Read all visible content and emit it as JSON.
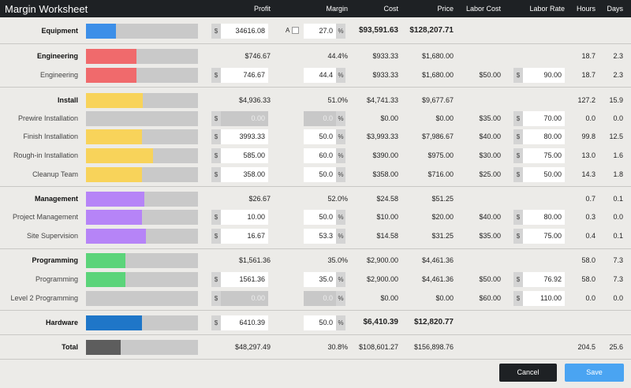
{
  "app_title": "Margin Worksheet",
  "columns": {
    "profit": "Profit",
    "margin": "Margin",
    "cost": "Cost",
    "price": "Price",
    "labor_cost": "Labor Cost",
    "labor_rate": "Labor Rate",
    "hours": "Hours",
    "days": "Days"
  },
  "colors": {
    "equipment": "#3d8fe8",
    "engineering": "#f06a6c",
    "install": "#f8d35a",
    "management": "#b684f7",
    "programming": "#5bd47a",
    "hardware": "#1f76c8",
    "total": "#5d5d5d"
  },
  "symbols": {
    "dollar": "$",
    "percent": "%"
  },
  "rows": [
    {
      "name": "Equipment",
      "group": true,
      "color": "equipment",
      "fill": 0.27,
      "profit_input": "34616.08",
      "auto_label": "A",
      "margin_input": "27.0",
      "cost": "$93,591.63",
      "price": "$128,207.71",
      "bold_values": true
    },
    {
      "name": "Engineering",
      "group": true,
      "color": "engineering",
      "fill": 0.45,
      "profit": "$746.67",
      "margin": "44.4%",
      "cost": "$933.33",
      "price": "$1,680.00",
      "hours": "18.7",
      "days": "2.3"
    },
    {
      "name": "Engineering",
      "color": "engineering",
      "fill": 0.45,
      "profit_input": "746.67",
      "margin_input": "44.4",
      "cost": "$933.33",
      "price": "$1,680.00",
      "labor_cost": "$50.00",
      "labor_rate": "90.00",
      "hours": "18.7",
      "days": "2.3"
    },
    {
      "name": "Install",
      "group": true,
      "color": "install",
      "fill": 0.51,
      "profit": "$4,936.33",
      "margin": "51.0%",
      "cost": "$4,741.33",
      "price": "$9,677.67",
      "hours": "127.2",
      "days": "15.9"
    },
    {
      "name": "Prewire Installation",
      "color": "install",
      "fill": 0,
      "profit_input": "0.00",
      "margin_input": "0.0",
      "disabled": true,
      "cost": "$0.00",
      "price": "$0.00",
      "labor_cost": "$35.00",
      "labor_rate": "70.00",
      "hours": "0.0",
      "days": "0.0"
    },
    {
      "name": "Finish Installation",
      "color": "install",
      "fill": 0.5,
      "profit_input": "3993.33",
      "margin_input": "50.0",
      "cost": "$3,993.33",
      "price": "$7,986.67",
      "labor_cost": "$40.00",
      "labor_rate": "80.00",
      "hours": "99.8",
      "days": "12.5"
    },
    {
      "name": "Rough-in Installation",
      "color": "install",
      "fill": 0.6,
      "profit_input": "585.00",
      "margin_input": "60.0",
      "cost": "$390.00",
      "price": "$975.00",
      "labor_cost": "$30.00",
      "labor_rate": "75.00",
      "hours": "13.0",
      "days": "1.6"
    },
    {
      "name": "Cleanup Team",
      "color": "install",
      "fill": 0.5,
      "profit_input": "358.00",
      "margin_input": "50.0",
      "cost": "$358.00",
      "price": "$716.00",
      "labor_cost": "$25.00",
      "labor_rate": "50.00",
      "hours": "14.3",
      "days": "1.8"
    },
    {
      "name": "Management",
      "group": true,
      "color": "management",
      "fill": 0.52,
      "profit": "$26.67",
      "margin": "52.0%",
      "cost": "$24.58",
      "price": "$51.25",
      "hours": "0.7",
      "days": "0.1"
    },
    {
      "name": "Project Management",
      "color": "management",
      "fill": 0.5,
      "profit_input": "10.00",
      "margin_input": "50.0",
      "cost": "$10.00",
      "price": "$20.00",
      "labor_cost": "$40.00",
      "labor_rate": "80.00",
      "hours": "0.3",
      "days": "0.0"
    },
    {
      "name": "Site Supervision",
      "color": "management",
      "fill": 0.533,
      "profit_input": "16.67",
      "margin_input": "53.3",
      "cost": "$14.58",
      "price": "$31.25",
      "labor_cost": "$35.00",
      "labor_rate": "75.00",
      "hours": "0.4",
      "days": "0.1"
    },
    {
      "name": "Programming",
      "group": true,
      "color": "programming",
      "fill": 0.35,
      "profit": "$1,561.36",
      "margin": "35.0%",
      "cost": "$2,900.00",
      "price": "$4,461.36",
      "hours": "58.0",
      "days": "7.3"
    },
    {
      "name": "Programming",
      "color": "programming",
      "fill": 0.35,
      "profit_input": "1561.36",
      "margin_input": "35.0",
      "cost": "$2,900.00",
      "price": "$4,461.36",
      "labor_cost": "$50.00",
      "labor_rate": "76.92",
      "hours": "58.0",
      "days": "7.3"
    },
    {
      "name": "Level 2 Programming",
      "color": "programming",
      "fill": 0,
      "profit_input": "0.00",
      "margin_input": "0.0",
      "disabled": true,
      "cost": "$0.00",
      "price": "$0.00",
      "labor_cost": "$60.00",
      "labor_rate": "110.00",
      "hours": "0.0",
      "days": "0.0"
    },
    {
      "name": "Hardware",
      "group": true,
      "color": "hardware",
      "fill": 0.5,
      "profit_input": "6410.39",
      "margin_input": "50.0",
      "cost": "$6,410.39",
      "price": "$12,820.77",
      "bold_values": true
    },
    {
      "name": "Total",
      "group": true,
      "color": "total",
      "fill": 0.308,
      "profit": "$48,297.49",
      "margin": "30.8%",
      "cost": "$108,601.27",
      "price": "$156,898.76",
      "hours": "204.5",
      "days": "25.6"
    }
  ],
  "buttons": {
    "cancel": "Cancel",
    "save": "Save"
  }
}
